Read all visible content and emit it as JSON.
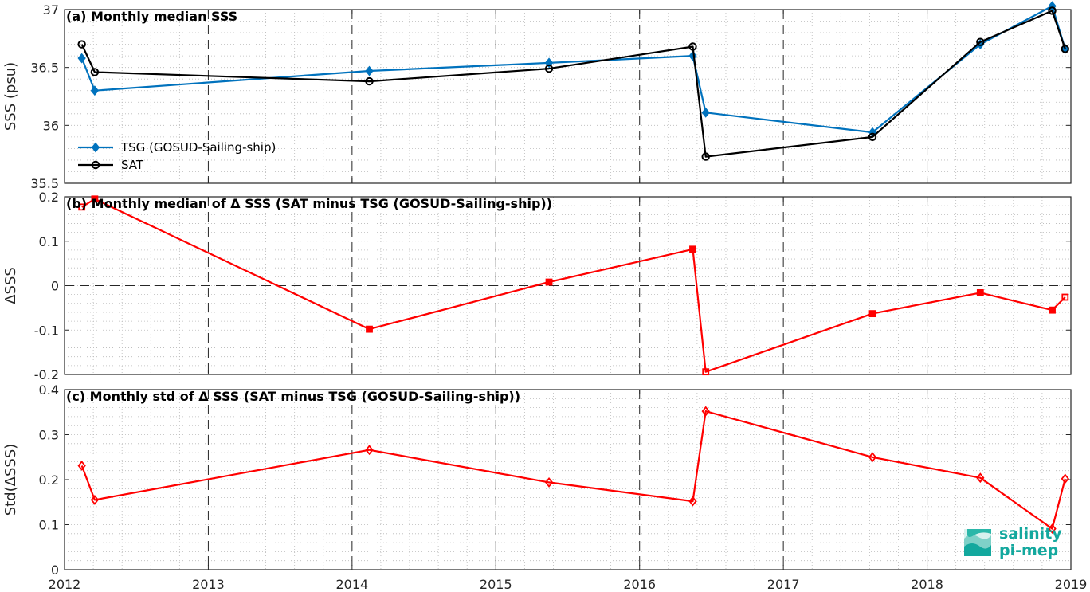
{
  "chart_data": [
    {
      "type": "line",
      "title": "(a) Monthly median SSS",
      "ylabel": "SSS (psu)",
      "xlim": [
        2012,
        2019
      ],
      "ylim": [
        35.5,
        37
      ],
      "xticks": [
        "2012",
        "2013",
        "2014",
        "2015",
        "2016",
        "2017",
        "2018",
        "2019"
      ],
      "yticks": [
        "35.5",
        "36",
        "36.5",
        "37"
      ],
      "grid": "major dashed x, minor dotted",
      "legend_position": "lower-left",
      "series": [
        {
          "name": "TSG (GOSUD-Sailing-ship)",
          "color": "#0072bd",
          "marker": "diamond",
          "x": [
            2012.12,
            2012.21,
            2014.12,
            2015.37,
            2016.37,
            2016.46,
            2017.62,
            2018.37,
            2018.87,
            2018.96
          ],
          "y": [
            36.58,
            36.3,
            36.47,
            36.54,
            36.6,
            36.11,
            35.94,
            36.7,
            37.03,
            36.66
          ]
        },
        {
          "name": "SAT",
          "color": "#000000",
          "marker": "circle",
          "x": [
            2012.12,
            2012.21,
            2014.12,
            2015.37,
            2016.37,
            2016.46,
            2017.62,
            2018.37,
            2018.87,
            2018.96
          ],
          "y": [
            36.7,
            36.46,
            36.38,
            36.49,
            36.68,
            35.73,
            35.9,
            36.72,
            36.99,
            36.66
          ]
        }
      ]
    },
    {
      "type": "line",
      "title": "(b) Monthly median of Δ SSS (SAT minus TSG (GOSUD-Sailing-ship))",
      "ylabel": "ΔSSS",
      "xlim": [
        2012,
        2019
      ],
      "ylim": [
        -0.2,
        0.2
      ],
      "yticks": [
        "-0.2",
        "-0.1",
        "0",
        "0.1",
        "0.2"
      ],
      "zero_line": true,
      "series": [
        {
          "color": "#ff0000",
          "marker": "square",
          "x": [
            2012.12,
            2012.21,
            2014.12,
            2015.37,
            2016.37,
            2016.46,
            2017.62,
            2018.37,
            2018.87,
            2018.96
          ],
          "y": [
            0.177,
            0.195,
            -0.098,
            0.008,
            0.082,
            -0.194,
            -0.063,
            -0.016,
            -0.055,
            -0.026
          ]
        }
      ]
    },
    {
      "type": "line",
      "title": "(c) Monthly std of Δ SSS (SAT minus TSG (GOSUD-Sailing-ship))",
      "ylabel": "Std(ΔSSS)",
      "xlim": [
        2012,
        2019
      ],
      "ylim": [
        0,
        0.4
      ],
      "yticks": [
        "0",
        "0.1",
        "0.2",
        "0.3",
        "0.4"
      ],
      "series": [
        {
          "color": "#ff0000",
          "marker": "diamond",
          "x": [
            2012.12,
            2012.21,
            2014.12,
            2015.37,
            2016.37,
            2016.46,
            2017.62,
            2018.37,
            2018.87,
            2018.96
          ],
          "y": [
            0.231,
            0.155,
            0.266,
            0.194,
            0.152,
            0.352,
            0.25,
            0.204,
            0.091,
            0.202
          ]
        }
      ]
    }
  ],
  "logo": {
    "line1": "salinity",
    "line2": "pi-mep",
    "color": "#13a89e"
  }
}
